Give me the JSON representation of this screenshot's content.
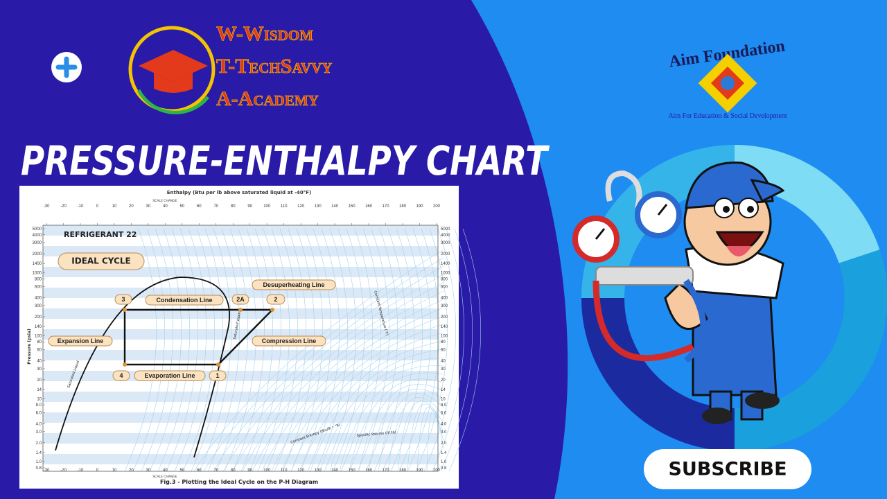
{
  "logo": {
    "lines": [
      "W-Wisdom",
      "T-TechSavvy",
      "A-Academy"
    ]
  },
  "title": "PRESSURE-ENTHALPY CHART",
  "diagram": {
    "axis_top": "Enthalpy (Btu per lb above saturated liquid at -40°F)",
    "scale_change": "SCALE CHANGE",
    "enthalpy_ticks": [
      -30,
      -20,
      -10,
      0,
      10,
      20,
      30,
      40,
      50,
      60,
      70,
      80,
      90,
      100,
      110,
      120,
      130,
      140,
      150,
      160,
      170,
      180,
      190,
      200
    ],
    "pressure_label": "Pressure (psia)",
    "pressure_ticks": [
      "5000",
      "4000",
      "3000",
      "2000",
      "1400",
      "1000",
      "800",
      "600",
      "400",
      "300",
      "200",
      "140",
      "100",
      "80",
      "60",
      "40",
      "30",
      "20",
      "14",
      "10",
      "8.0",
      "6.0",
      "4.0",
      "3.0",
      "2.0",
      "1.4",
      "1.0",
      "0.8"
    ],
    "refrigerant": "REFRIGERANT 22",
    "cycle": "IDEAL CYCLE",
    "points": [
      "3",
      "2A",
      "2",
      "4",
      "1"
    ],
    "lines": [
      "Condensation Line",
      "Desuperheating Line",
      "Expansion Line",
      "Compression Line",
      "Evaporation Line"
    ],
    "curve_labels": [
      "Saturated Liquid",
      "Saturated Vapor",
      "Constant Entropy (Btu/lb • °R)",
      "Specific Volume (ft³/lb)",
      "Constant Temperature (°F)"
    ],
    "caption": "Fig.3 - Plotting the Ideal Cycle on the P-H Diagram"
  },
  "aim": {
    "name": "Aim Foundation",
    "tagline": "Aim For Education & Social Development"
  },
  "subscribe": "SUBSCRIBE"
}
